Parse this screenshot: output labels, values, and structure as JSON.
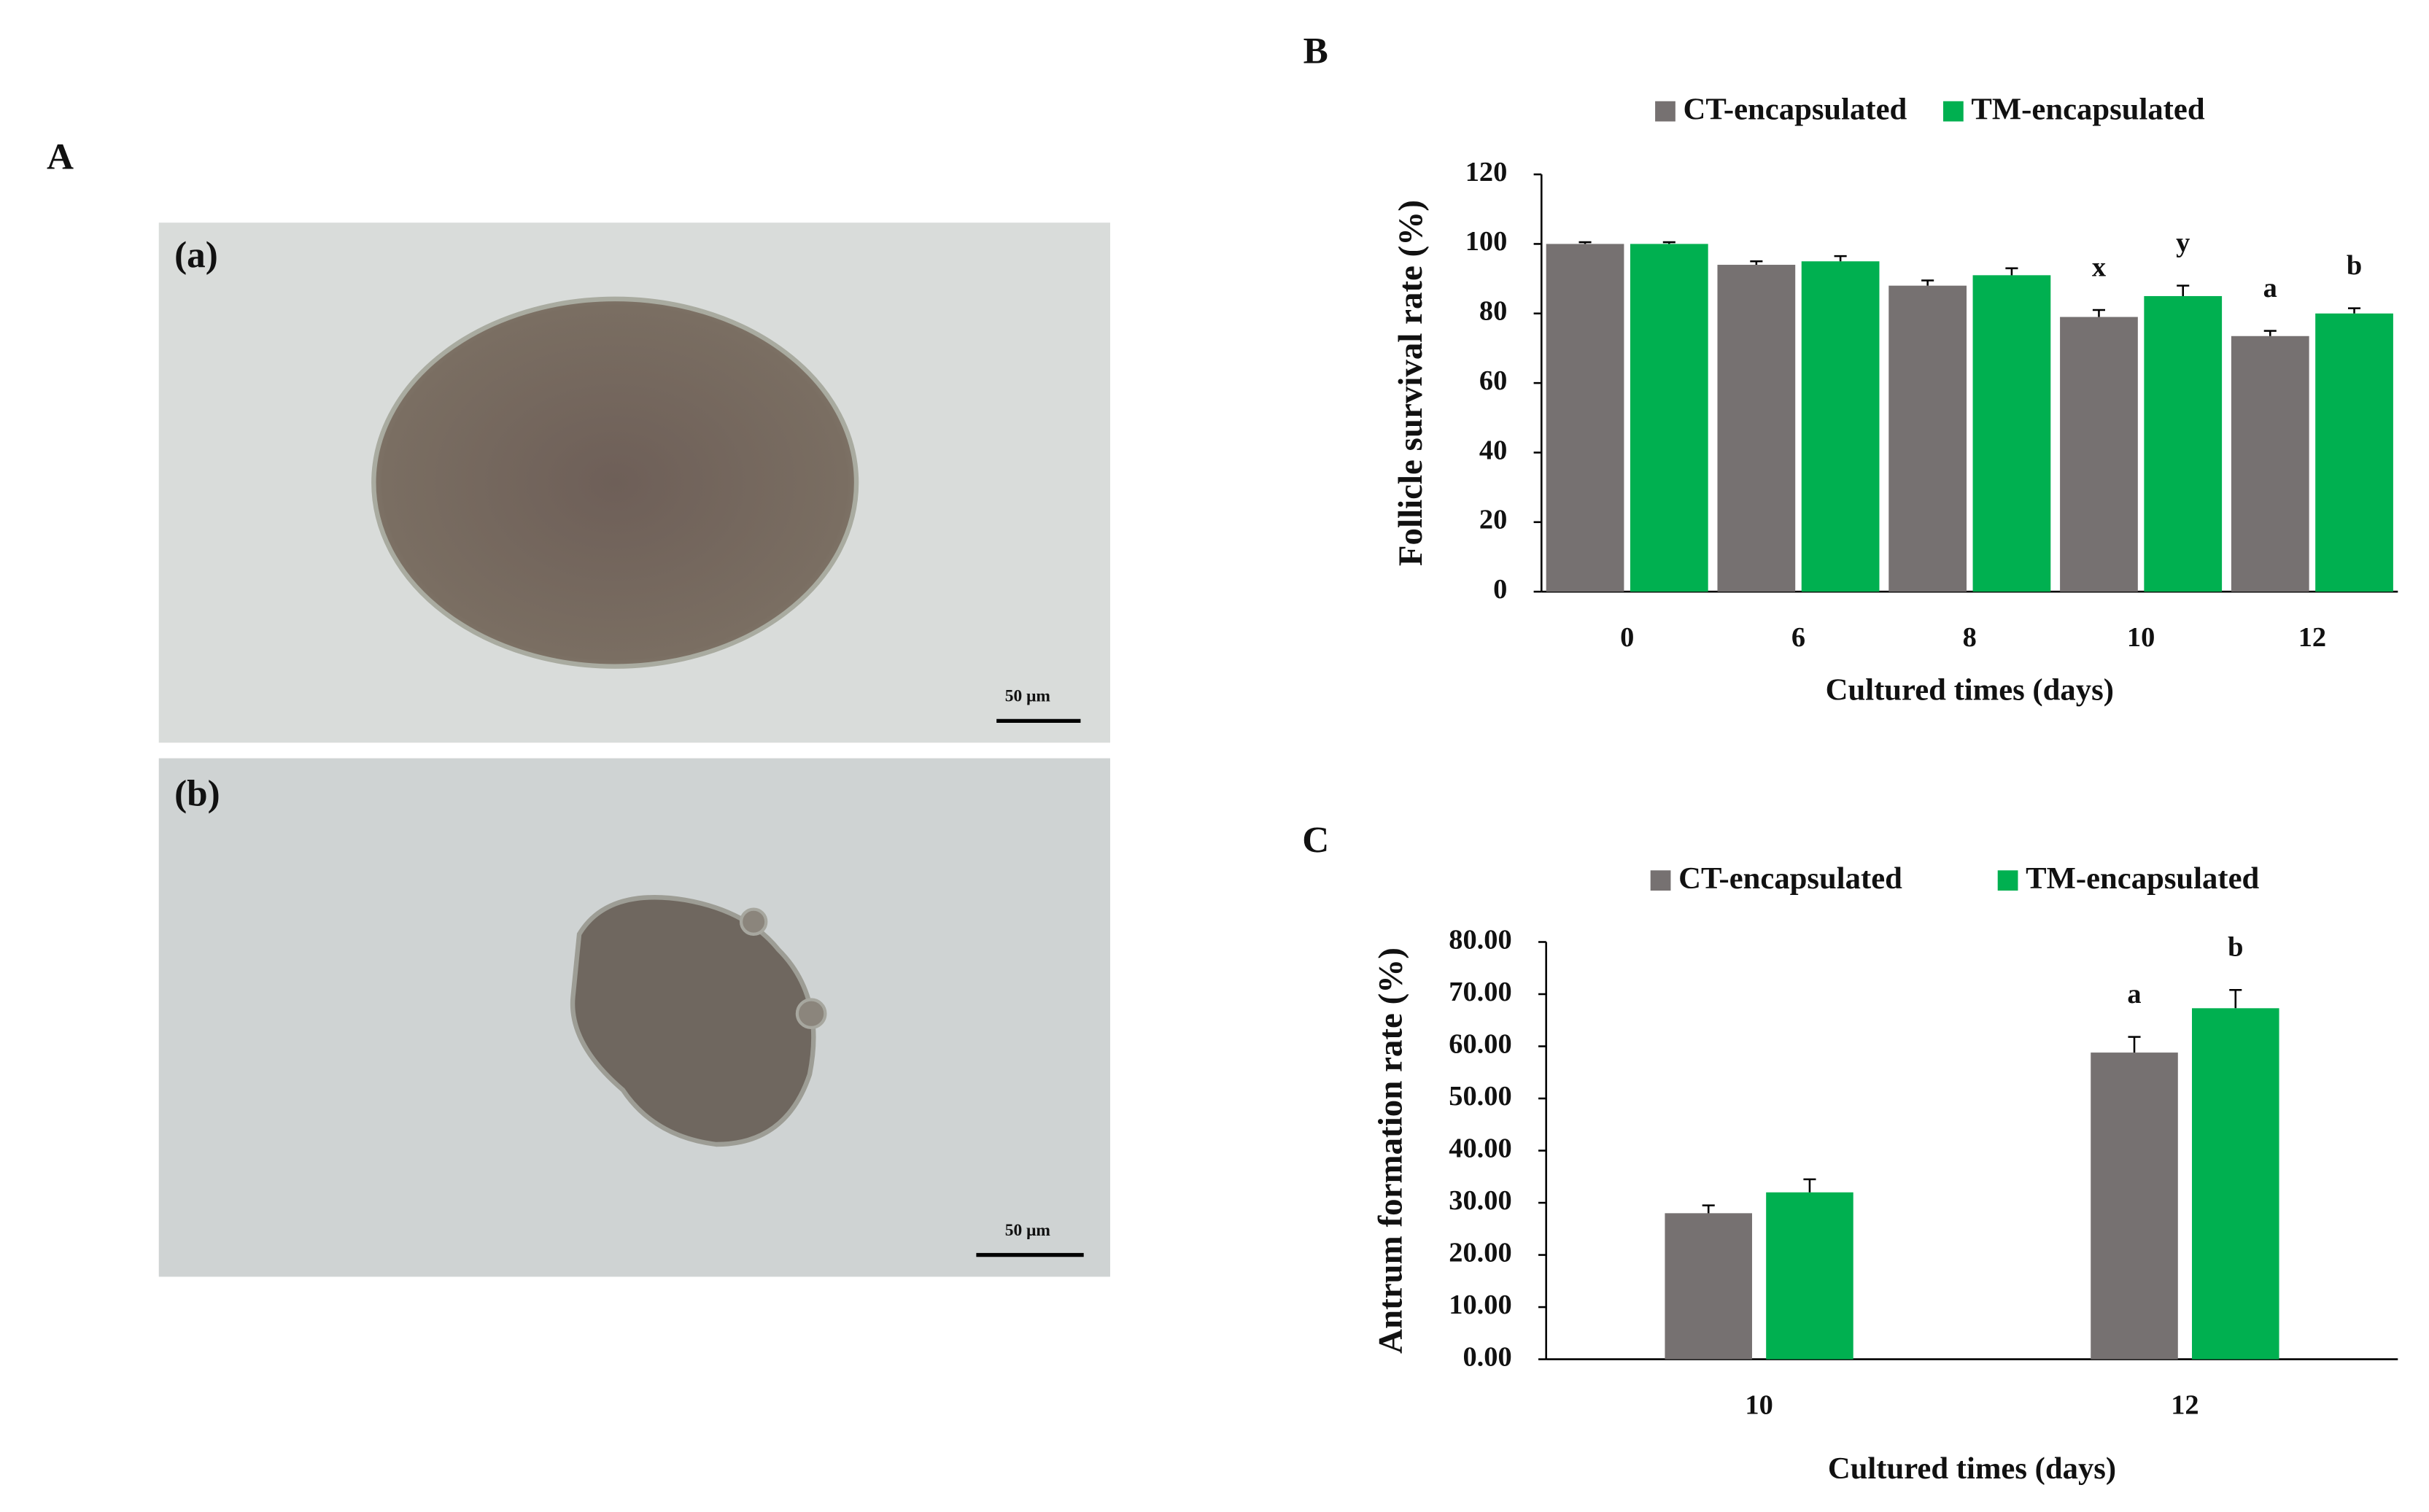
{
  "figure": {
    "panel_a": {
      "label": "A",
      "images": [
        {
          "label": "(a)",
          "scale": "50 μm"
        },
        {
          "label": "(b)",
          "scale": "50 μm"
        }
      ]
    }
  },
  "chart_data": [
    {
      "type": "bar",
      "panel": "B",
      "y_label": "Follicle survival rate (%)",
      "x_label": "Cultured times (days)",
      "categories": [
        "0",
        "6",
        "8",
        "10",
        "12"
      ],
      "series": [
        {
          "name": "CT-encapsulated",
          "color": "#767171",
          "values": [
            100,
            94,
            88,
            79,
            73.5
          ],
          "errors": [
            0.5,
            1,
            1.5,
            2,
            1.5
          ]
        },
        {
          "name": "TM-encapsulated",
          "color": "#00b050",
          "values": [
            100,
            95,
            91,
            85,
            80
          ],
          "errors": [
            0.5,
            1.5,
            2,
            3,
            1.5
          ]
        }
      ],
      "annotations": [
        {
          "text": "x",
          "category": "10",
          "series": "CT-encapsulated"
        },
        {
          "text": "y",
          "category": "10",
          "series": "TM-encapsulated"
        },
        {
          "text": "a",
          "category": "12",
          "series": "CT-encapsulated"
        },
        {
          "text": "b",
          "category": "12",
          "series": "TM-encapsulated"
        }
      ],
      "ylim": [
        0,
        120
      ],
      "yticks": [
        0,
        20,
        40,
        60,
        80,
        100,
        120
      ],
      "grid": false,
      "legend": "top"
    },
    {
      "type": "bar",
      "panel": "C",
      "y_label": "Antrum formation rate (%)",
      "x_label": "Cultured times (days)",
      "categories": [
        "10",
        "12"
      ],
      "series": [
        {
          "name": "CT-encapsulated",
          "color": "#767171",
          "values": [
            28,
            58.8
          ],
          "errors": [
            1.5,
            3
          ]
        },
        {
          "name": "TM-encapsulated",
          "color": "#00b050",
          "values": [
            32,
            67.3
          ],
          "errors": [
            2.5,
            3.5
          ]
        }
      ],
      "annotations": [
        {
          "text": "a",
          "category": "12",
          "series": "CT-encapsulated"
        },
        {
          "text": "b",
          "category": "12",
          "series": "TM-encapsulated"
        }
      ],
      "ylim": [
        0,
        80
      ],
      "yticks": [
        {
          "value": 0,
          "label": "0.00"
        },
        {
          "value": 10,
          "label": "10.00"
        },
        {
          "value": 20,
          "label": "20.00"
        },
        {
          "value": 30,
          "label": "30.00"
        },
        {
          "value": 40,
          "label": "40.00"
        },
        {
          "value": 50,
          "label": "50.00"
        },
        {
          "value": 60,
          "label": "60.00"
        },
        {
          "value": 70,
          "label": "70.00"
        },
        {
          "value": 80,
          "label": "80.00"
        }
      ],
      "grid": false,
      "legend": "top"
    }
  ]
}
